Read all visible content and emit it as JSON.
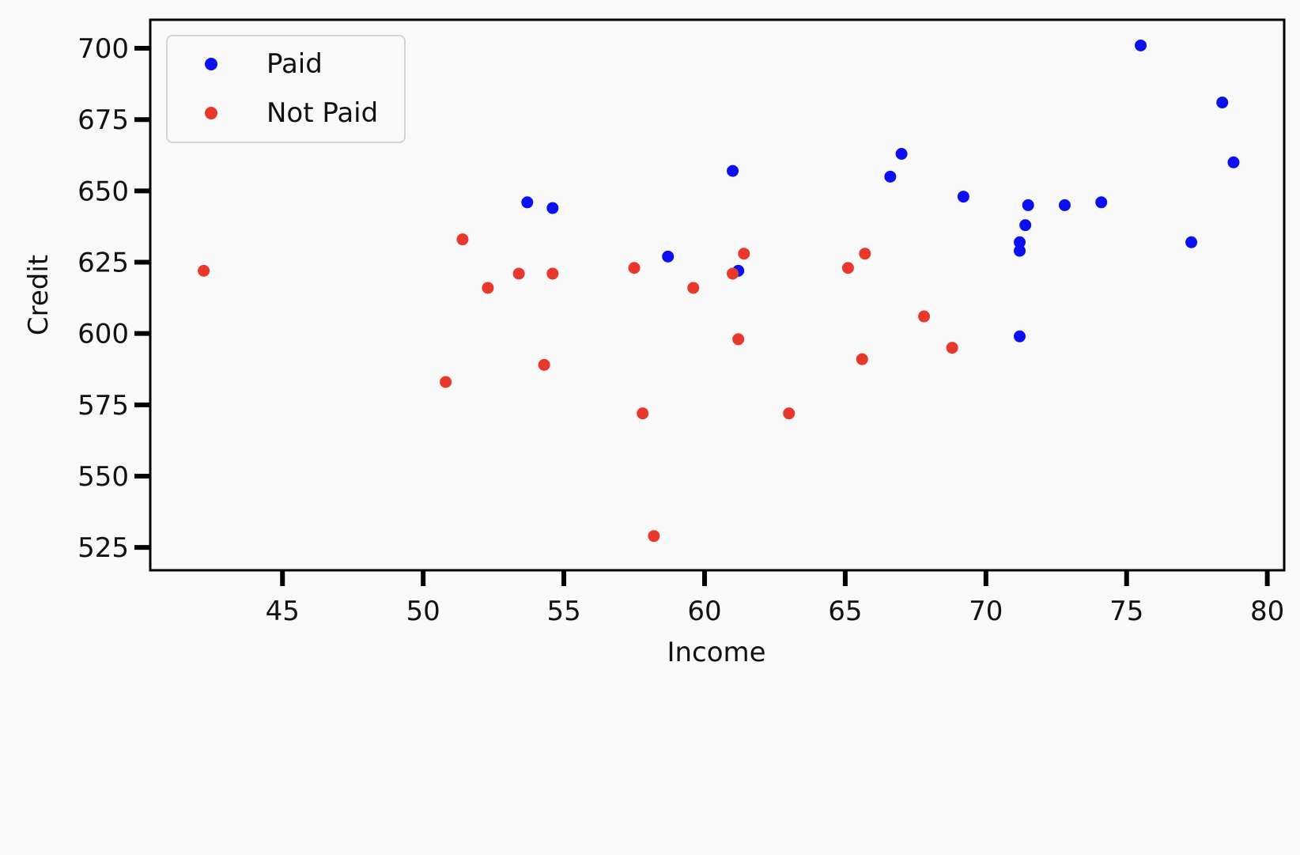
{
  "chart_data": {
    "type": "scatter",
    "xlabel": "Income",
    "ylabel": "Credit",
    "xlim": [
      40.3,
      80.6
    ],
    "ylim": [
      517,
      710
    ],
    "xticks": [
      45,
      50,
      55,
      60,
      65,
      70,
      75,
      80
    ],
    "yticks": [
      525,
      550,
      575,
      600,
      625,
      650,
      675,
      700
    ],
    "grid": false,
    "legend_position": "top-left",
    "series": [
      {
        "name": "Paid",
        "color": "#0a10f0",
        "points": [
          [
            53.7,
            646
          ],
          [
            54.6,
            644
          ],
          [
            58.7,
            627
          ],
          [
            61.0,
            657
          ],
          [
            61.2,
            622
          ],
          [
            66.6,
            655
          ],
          [
            67.0,
            663
          ],
          [
            69.2,
            648
          ],
          [
            71.2,
            632
          ],
          [
            71.2,
            629
          ],
          [
            71.4,
            638
          ],
          [
            71.5,
            645
          ],
          [
            71.2,
            599
          ],
          [
            72.8,
            645
          ],
          [
            74.1,
            646
          ],
          [
            75.5,
            701
          ],
          [
            77.3,
            632
          ],
          [
            78.4,
            681
          ],
          [
            78.8,
            660
          ]
        ]
      },
      {
        "name": "Not Paid",
        "color": "#e8372b",
        "points": [
          [
            42.2,
            622
          ],
          [
            50.8,
            583
          ],
          [
            51.4,
            633
          ],
          [
            52.3,
            616
          ],
          [
            53.4,
            621
          ],
          [
            54.3,
            589
          ],
          [
            54.6,
            621
          ],
          [
            57.5,
            623
          ],
          [
            57.8,
            572
          ],
          [
            58.2,
            529
          ],
          [
            59.6,
            616
          ],
          [
            61.0,
            621
          ],
          [
            61.2,
            598
          ],
          [
            61.4,
            628
          ],
          [
            63.0,
            572
          ],
          [
            65.1,
            623
          ],
          [
            65.6,
            591
          ],
          [
            65.7,
            628
          ],
          [
            67.8,
            606
          ],
          [
            68.8,
            595
          ]
        ]
      }
    ]
  }
}
